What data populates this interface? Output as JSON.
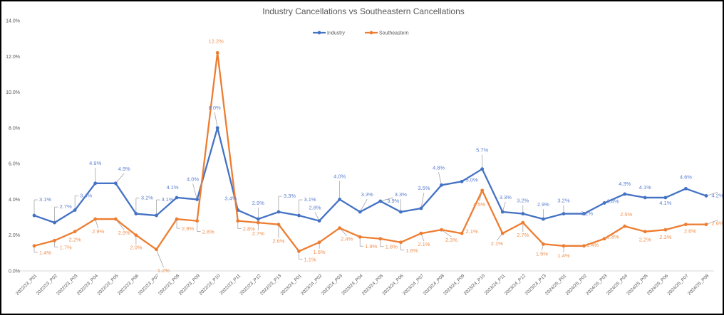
{
  "chart_data": {
    "type": "line",
    "title": "Industry Cancellations vs Southeastern Cancellations",
    "xlabel": "",
    "ylabel": "",
    "ylim": [
      0,
      14
    ],
    "yticks": [
      "0.0%",
      "2.0%",
      "4.0%",
      "6.0%",
      "8.0%",
      "10.0%",
      "12.0%",
      "14.0%"
    ],
    "ytick_values": [
      0,
      2,
      4,
      6,
      8,
      10,
      12,
      14
    ],
    "grid": false,
    "legend": "top-center",
    "categories": [
      "2022/23_P01",
      "2022/23_P02",
      "2022/23_P03",
      "2022/23_P04",
      "2022/23_P05",
      "2022/23_P06",
      "2022/23_P07",
      "2022/23_P08",
      "2022/23_P09",
      "2022/23_P10",
      "2022/23_P11",
      "2022/23_P12",
      "2022/23_P13",
      "2023/24_P01",
      "2023/24_P02",
      "2023/24_P03",
      "2023/24_P04",
      "2023/24_P05",
      "2023/24_P06",
      "2023/24_P07",
      "2023/24_P08",
      "2023/24_P09",
      "2023/24_P10",
      "2023/24_P11",
      "2023/24_P12",
      "2023/24_P13",
      "2024/25_P01",
      "2024/25_P02",
      "2024/25_P03",
      "2024/25_P04",
      "2024/25_P05",
      "2024/25_P06",
      "2024/25_P07",
      "2024/25_P08"
    ],
    "series": [
      {
        "name": "Industry",
        "color": "#4472C4",
        "values": [
          3.1,
          2.7,
          3.4,
          4.9,
          4.9,
          3.2,
          3.1,
          4.1,
          4.0,
          8.0,
          3.4,
          2.9,
          3.3,
          3.1,
          2.8,
          4.0,
          3.3,
          3.9,
          3.3,
          3.5,
          4.8,
          5.0,
          5.7,
          3.3,
          3.2,
          2.9,
          3.2,
          3.2,
          3.8,
          4.3,
          4.1,
          4.1,
          4.6,
          4.2
        ],
        "labels": [
          "3.1%",
          "2.7%",
          "3.4%",
          "4.9%",
          "4.9%",
          "3.2%",
          "3.1%",
          "4.1%",
          "4.0%",
          "8.0%",
          "3.4%",
          "2.9%",
          "3.3%",
          "3.1%",
          "2.8%",
          "4.0%",
          "3.3%",
          "3.9%",
          "3.3%",
          "3.5%",
          "4.8%",
          "5.0%",
          "5.7%",
          "3.3%",
          "3.2%",
          "2.9%",
          "3.2%",
          "3.2%",
          "3.8%",
          "4.3%",
          "4.1%",
          "4.1%",
          "4.6%",
          "4.2%"
        ]
      },
      {
        "name": "Southeastern",
        "color": "#ED7D31",
        "values": [
          1.4,
          1.7,
          2.2,
          2.9,
          2.9,
          2.0,
          1.2,
          2.9,
          2.8,
          12.2,
          2.8,
          2.7,
          2.6,
          1.1,
          1.6,
          2.4,
          1.9,
          1.8,
          1.6,
          2.1,
          2.3,
          2.1,
          4.5,
          2.1,
          2.7,
          1.5,
          1.4,
          1.4,
          1.8,
          2.5,
          2.2,
          2.3,
          2.6,
          2.6
        ],
        "labels": [
          "1.4%",
          "1.7%",
          "2.2%",
          "2.9%",
          "2.9%",
          "2.0%",
          "1.2%",
          "2.9%",
          "2.8%",
          "12.2%",
          "2.8%",
          "2.7%",
          "2.6%",
          "1.1%",
          "1.6%",
          "2.4%",
          "1.9%",
          "1.8%",
          "1.6%",
          "2.1%",
          "2.3%",
          "2.1%",
          "4.5%",
          "2.1%",
          "2.7%",
          "1.5%",
          "1.4%",
          "1.4%",
          "1.8%",
          "2.5%",
          "2.2%",
          "2.3%",
          "2.6%",
          "2.6%"
        ]
      }
    ]
  }
}
